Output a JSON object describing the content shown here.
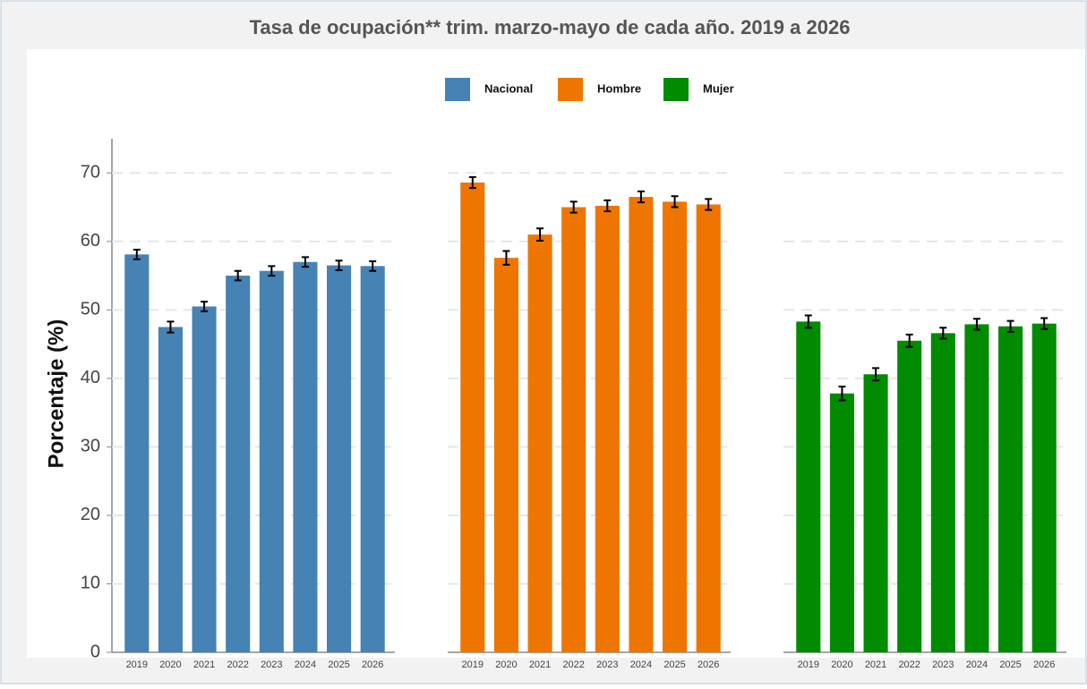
{
  "chart_data": {
    "type": "bar",
    "title": "Tasa de ocupación** trim.  marzo-mayo de cada año. 2019 a 2026",
    "ylabel": "Porcentaje (%)",
    "categories": [
      "2019",
      "2020",
      "2021",
      "2022",
      "2023",
      "2024",
      "2025",
      "2026"
    ],
    "series": [
      {
        "name": "Nacional",
        "color": "#4682b4",
        "values": [
          58.1,
          47.5,
          50.5,
          55.0,
          55.7,
          57.0,
          56.5,
          56.4
        ],
        "errors": [
          0.7,
          0.8,
          0.7,
          0.7,
          0.7,
          0.7,
          0.7,
          0.7
        ]
      },
      {
        "name": "Hombre",
        "color": "#ee7600",
        "values": [
          68.6,
          57.6,
          61.0,
          65.0,
          65.2,
          66.5,
          65.8,
          65.4
        ],
        "errors": [
          0.8,
          1.0,
          0.9,
          0.8,
          0.8,
          0.8,
          0.8,
          0.8
        ]
      },
      {
        "name": "Mujer",
        "color": "#008b00",
        "values": [
          48.3,
          37.8,
          40.6,
          45.5,
          46.6,
          47.9,
          47.6,
          48.0
        ],
        "errors": [
          0.9,
          1.0,
          0.9,
          0.9,
          0.8,
          0.8,
          0.8,
          0.8
        ]
      }
    ],
    "ylim": [
      0,
      75
    ],
    "yticks": [
      0,
      10,
      20,
      30,
      40,
      50,
      60,
      70
    ],
    "grid": true
  }
}
